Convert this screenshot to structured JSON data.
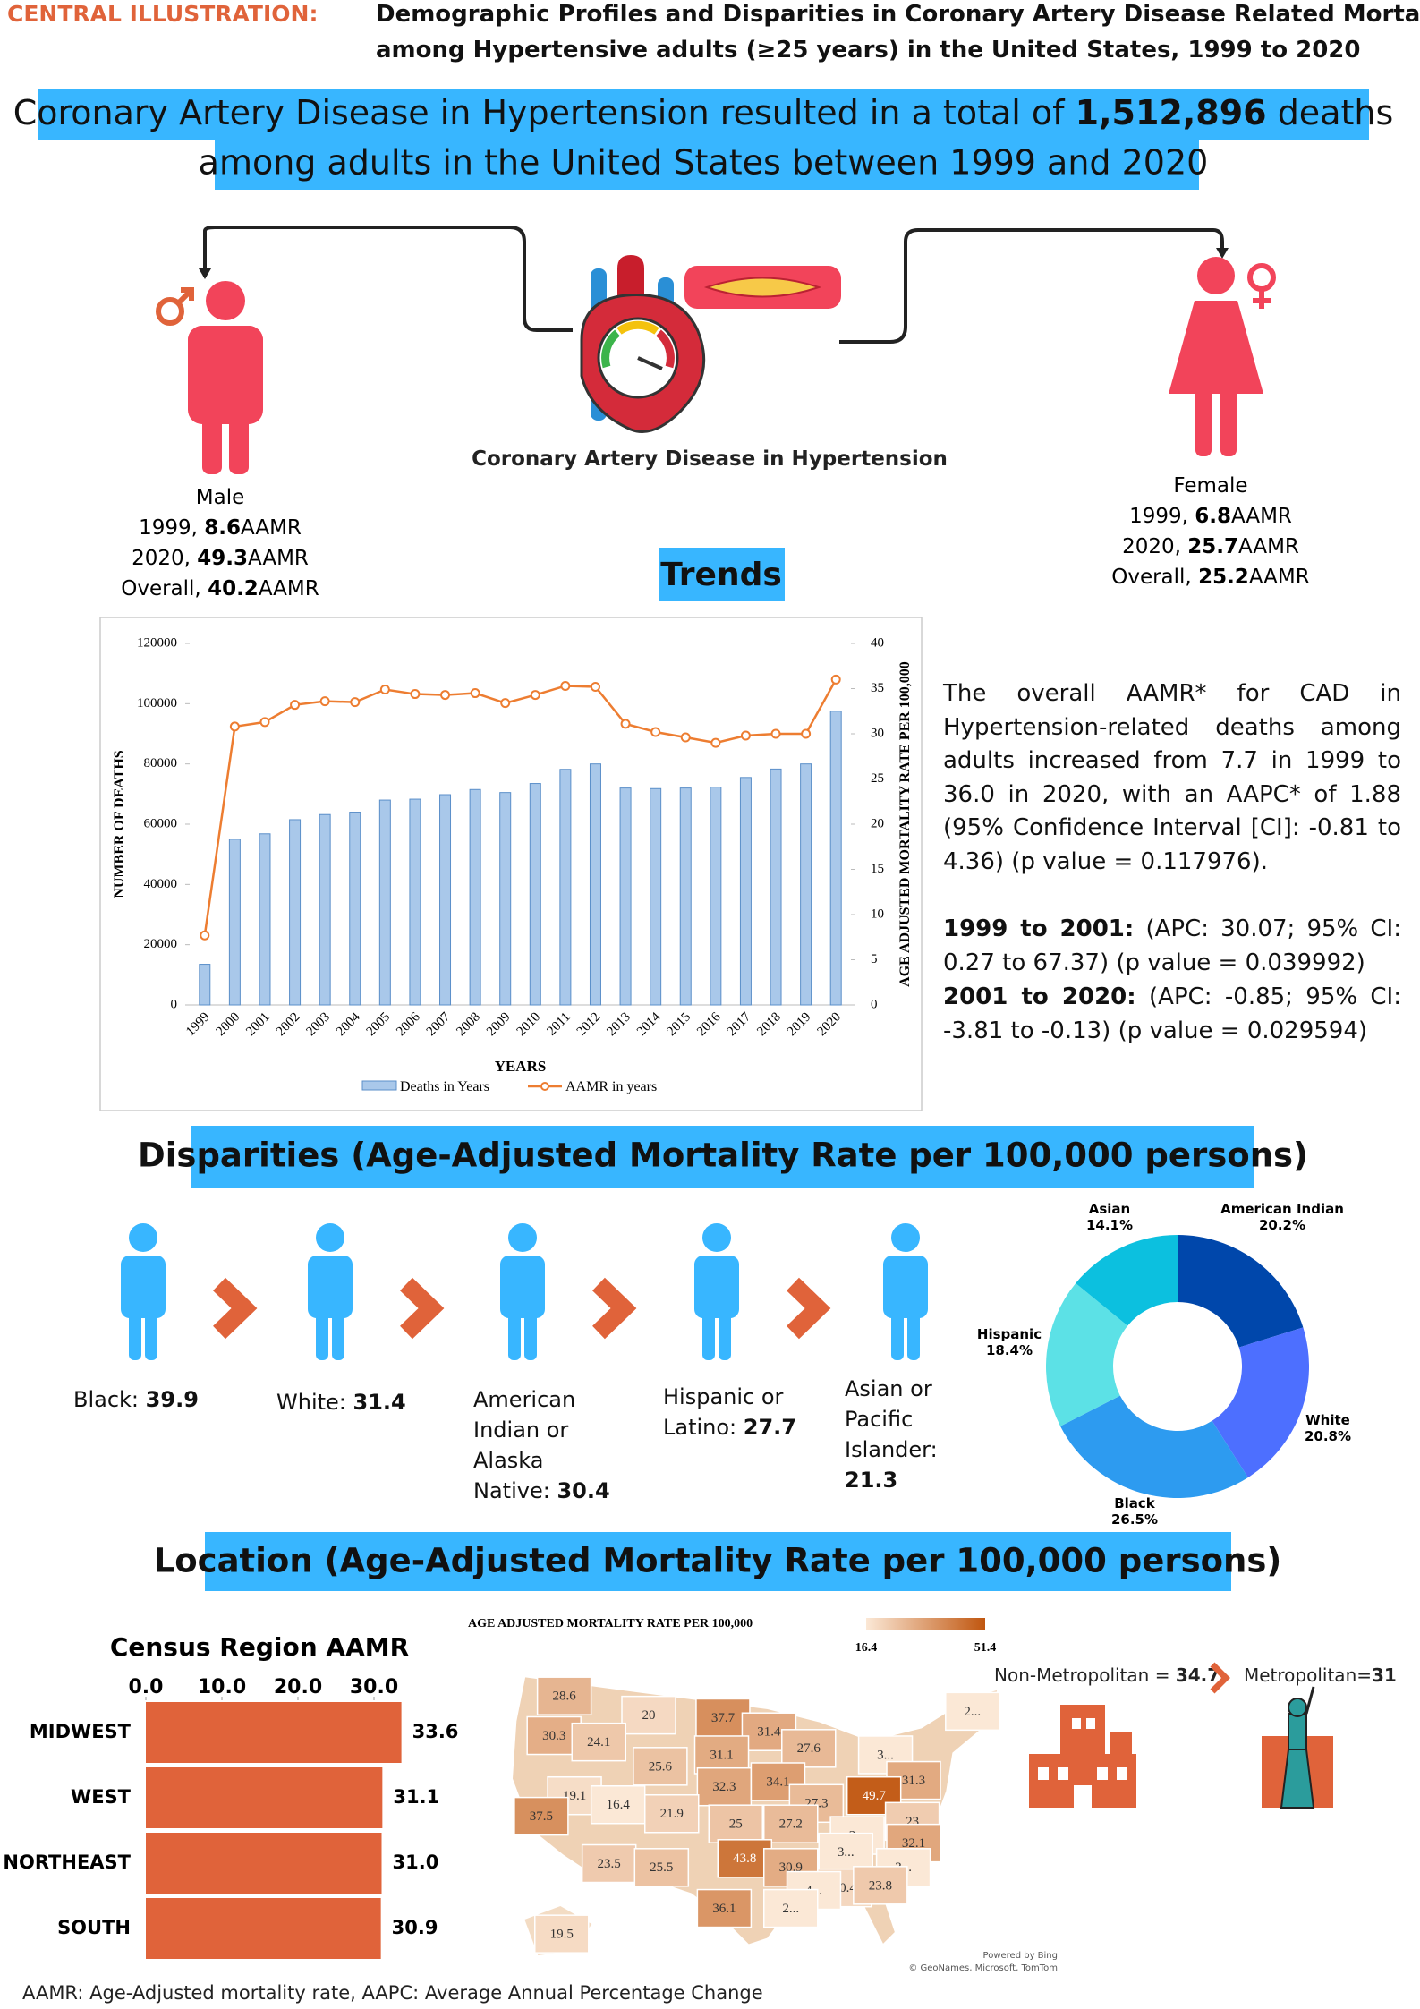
{
  "header": {
    "label": "CENTRAL ILLUSTRATION:",
    "title_lines": [
      "Demographic Profiles and Disparities in Coronary Artery Disease Related Mortality",
      "among Hypertensive adults (≥25 years) in the United States, 1999 to 2020"
    ]
  },
  "banner": {
    "text_before": "Coronary Artery Disease in Hypertension resulted in a total of",
    "total": "1,512,896",
    "text_after": "deaths",
    "line2": "among adults in the United States between 1999 and 2020"
  },
  "illustration_caption": "Coronary Artery Disease in Hypertension",
  "male": {
    "label": "Male",
    "stats": [
      {
        "year": "1999,",
        "value": 8.6,
        "unit": "AAMR"
      },
      {
        "year": "2020,",
        "value": 49.3,
        "unit": "AAMR"
      },
      {
        "year": "Overall,",
        "value": 40.2,
        "unit": "AAMR"
      }
    ]
  },
  "female": {
    "label": "Female",
    "stats": [
      {
        "year": "1999,",
        "value": 6.8,
        "unit": "AAMR"
      },
      {
        "year": "2020,",
        "value": 25.7,
        "unit": "AAMR"
      },
      {
        "year": "Overall,",
        "value": 25.2,
        "unit": "AAMR"
      }
    ]
  },
  "trends_heading": "Trends",
  "trends_text": {
    "overall": "The overall AAMR* for CAD in Hypertension-related deaths among adults increased from 7.7 in 1999 to 36.0 in 2020, with an AAPC* of 1.88 (95% Confidence Interval [CI]: -0.81 to 4.36) (p value = 0.117976).",
    "segments": [
      {
        "period": "1999 to 2001:",
        "detail": "(APC: 30.07; 95% CI: 0.27 to 67.37) (p value = 0.039992)"
      },
      {
        "period": "2001 to 2020:",
        "detail": "(APC: -0.85; 95% CI: -3.81 to -0.13) (p value = 0.029594)"
      }
    ]
  },
  "disparities_heading": "Disparities (Age-Adjusted Mortality Rate per 100,000 persons)",
  "disparities": [
    {
      "label": "Black:",
      "value": 39.9
    },
    {
      "label": "White:",
      "value": 31.4
    },
    {
      "label": "American Indian or Alaska Native:",
      "value": 30.4
    },
    {
      "label": "Hispanic or Latino:",
      "value": 27.7
    },
    {
      "label": "Asian or Pacific Islander:",
      "value": 21.3
    }
  ],
  "location_heading": "Location (Age-Adjusted Mortality Rate per 100,000 persons)",
  "map": {
    "title": "AGE ADJUSTED MORTALITY RATE PER 100,000",
    "scale_min": 16.4,
    "scale_max": 51.4,
    "labels": [
      "28.6",
      "20",
      "37.7",
      "2...",
      "30.3",
      "24.1",
      "31.4",
      "27.6",
      "31.1",
      "3...",
      "25.6",
      "19.1",
      "32.3",
      "34.1",
      "31.3",
      "16.4",
      "49.7",
      "37.5",
      "21.9",
      "27.3",
      "25",
      "27.2",
      "23",
      "3...",
      "32.1",
      "43.8",
      "30.9",
      "3...",
      "23.5",
      "25.5",
      "3...",
      "20.4",
      "23.8",
      "4...",
      "36.1",
      "2...",
      "19.5"
    ],
    "credit": [
      "Powered by Bing",
      "© GeoNames, Microsoft, TomTom"
    ]
  },
  "metro": {
    "non_metro_label": "Non-Metropolitan =",
    "non_metro_value": 34.7,
    "metro_label": "Metropolitan=",
    "metro_value": 31
  },
  "footnote": "AAMR: Age-Adjusted mortality rate, AAPC: Average Annual Percentage Change",
  "chart_data": [
    {
      "type": "bar-line",
      "x_label": "YEARS",
      "y_label": "NUMBER OF DEATHS",
      "y2_label": "AGE ADJUSTED MORTALITY RATE PER 100,000",
      "categories": [
        "1999",
        "2000",
        "2001",
        "2002",
        "2003",
        "2004",
        "2005",
        "2006",
        "2007",
        "2008",
        "2009",
        "2010",
        "2011",
        "2012",
        "2013",
        "2014",
        "2015",
        "2016",
        "2017",
        "2018",
        "2019",
        "2020"
      ],
      "series": [
        {
          "name": "Deaths in Years",
          "type": "bar",
          "color": "#a9c8ea",
          "values": [
            13500,
            55000,
            56800,
            61500,
            63200,
            64000,
            68000,
            68300,
            69800,
            71500,
            70500,
            73500,
            78200,
            80000,
            72000,
            71800,
            72000,
            72300,
            75500,
            78300,
            80000,
            97500
          ]
        },
        {
          "name": "AAMR in years",
          "type": "line",
          "axis": "y2",
          "color": "#ed7d31",
          "values": [
            7.7,
            30.8,
            31.3,
            33.2,
            33.6,
            33.5,
            34.9,
            34.4,
            34.3,
            34.5,
            33.4,
            34.3,
            35.3,
            35.2,
            31.1,
            30.2,
            29.6,
            29.0,
            29.8,
            30.0,
            30.0,
            36.0
          ]
        }
      ],
      "ylim": [
        0,
        120000
      ],
      "yticks": [
        0,
        20000,
        40000,
        60000,
        80000,
        100000,
        120000
      ],
      "y2lim": [
        0,
        40
      ],
      "y2ticks": [
        0,
        5,
        10,
        15,
        20,
        25,
        30,
        35,
        40
      ]
    },
    {
      "type": "donut",
      "categories": [
        "American Indian",
        "White",
        "Black",
        "Hispanic",
        "Asian"
      ],
      "values": [
        20.2,
        20.8,
        26.5,
        18.4,
        14.1
      ],
      "value_labels": [
        "20.2%",
        "20.8%",
        "26.5%",
        "18.4%",
        "14.1%"
      ],
      "colors": [
        "#0047ab",
        "#4d6fff",
        "#2d9bf0",
        "#5ce1e6",
        "#0cc0df"
      ]
    },
    {
      "type": "hbar",
      "title": "Census Region AAMR",
      "categories": [
        "MIDWEST",
        "WEST",
        "NORTHEAST",
        "SOUTH"
      ],
      "values": [
        33.6,
        31.1,
        31.0,
        30.9
      ],
      "value_labels": [
        "33.6",
        "31.1",
        "31.0",
        "30.9"
      ],
      "color": "#e0633a",
      "xlim": [
        0,
        35
      ],
      "xticks": [
        {
          "value": 0,
          "label": "0.0"
        },
        {
          "value": 10,
          "label": "10.0"
        },
        {
          "value": 20,
          "label": "20.0"
        },
        {
          "value": 30,
          "label": "30.0"
        }
      ]
    }
  ]
}
